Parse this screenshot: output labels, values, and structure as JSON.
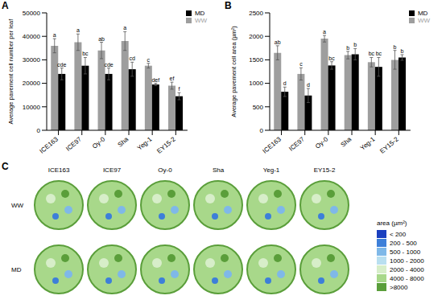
{
  "chart_data": [
    {
      "panel_label": "A",
      "type": "bar",
      "y_label": "Average pavement cell number per leaf",
      "categories": [
        "ICE163",
        "ICE97",
        "Oy-0",
        "Sha",
        "Yeg-1",
        "EY15-2"
      ],
      "series": [
        {
          "name": "WW",
          "color": "#9e9e9e",
          "values": [
            36000,
            37500,
            34000,
            38000,
            27500,
            19000
          ],
          "errors": [
            3000,
            3500,
            3500,
            4000,
            1000,
            1500
          ],
          "letters": [
            "a",
            "a",
            "ab",
            "a",
            "c",
            "ef"
          ]
        },
        {
          "name": "MD",
          "color": "#000000",
          "values": [
            24000,
            27500,
            24000,
            26000,
            19500,
            14500
          ],
          "errors": [
            2500,
            3500,
            2500,
            3000,
            500,
            1500
          ],
          "letters": [
            "cde",
            "bc",
            "cde",
            "cd",
            "def",
            "f"
          ]
        }
      ],
      "ylim": [
        0,
        50000
      ],
      "yticks": [
        0,
        10000,
        20000,
        30000,
        40000,
        50000
      ],
      "legend": "top-right"
    },
    {
      "panel_label": "B",
      "type": "bar",
      "y_label": "Average pavement cell area (µm²)",
      "categories": [
        "ICE163",
        "ICE97",
        "Oy-0",
        "Sha",
        "Yeg-1",
        "EY15-2"
      ],
      "series": [
        {
          "name": "WW",
          "color": "#9e9e9e",
          "values": [
            1650,
            1200,
            1950,
            1600,
            1450,
            1500
          ],
          "errors": [
            150,
            130,
            70,
            80,
            100,
            200
          ],
          "letters": [
            "ab",
            "c",
            "a",
            "b",
            "bc",
            "b"
          ]
        },
        {
          "name": "MD",
          "color": "#000000",
          "values": [
            820,
            740,
            1380,
            1620,
            1350,
            1550
          ],
          "errors": [
            100,
            150,
            80,
            120,
            200,
            60
          ],
          "letters": [
            "d",
            "d",
            "bc",
            "b",
            "bc",
            "b"
          ]
        }
      ],
      "ylim": [
        0,
        2500
      ],
      "yticks": [
        0,
        500,
        1000,
        1500,
        2000,
        2500
      ],
      "legend": "top-right"
    }
  ],
  "image_panel": {
    "panel_label": "C",
    "columns": [
      "ICE163",
      "ICE97",
      "Oy-0",
      "Sha",
      "Yeg-1",
      "EY15-2"
    ],
    "rows": [
      "WW",
      "MD"
    ],
    "color_legend": {
      "title": "area (µm²)",
      "labels": [
        "< 200",
        "200 - 500",
        "500 - 1000",
        "1000 - 2000",
        "2000 - 4000",
        "4000 - 8000",
        ">8000"
      ],
      "colors": [
        "#1a3fbf",
        "#3d7fd9",
        "#7fb8e8",
        "#b9dff0",
        "#d7eec9",
        "#a8d88a",
        "#5a9e3a"
      ]
    }
  }
}
